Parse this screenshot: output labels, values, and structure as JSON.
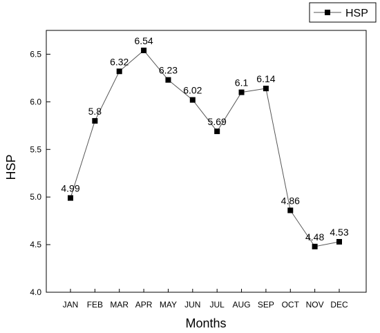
{
  "chart_data": {
    "type": "line",
    "title": "",
    "xlabel": "Months",
    "ylabel": "HSP",
    "categories": [
      "JAN",
      "FEB",
      "MAR",
      "APR",
      "MAY",
      "JUN",
      "JUL",
      "AUG",
      "SEP",
      "OCT",
      "NOV",
      "DEC"
    ],
    "series": [
      {
        "name": "HSP",
        "values": [
          4.99,
          5.8,
          6.32,
          6.54,
          6.23,
          6.02,
          5.69,
          6.1,
          6.14,
          4.86,
          4.48,
          4.53
        ],
        "labels": [
          "4.99",
          "5.8",
          "6.32",
          "6.54",
          "6.23",
          "6.02",
          "5.69",
          "6.1",
          "6.14",
          "4.86",
          "4.48",
          "4.53"
        ],
        "color": "#000000",
        "line_color": "#555555",
        "marker": "square"
      }
    ],
    "ylim": [
      4.0,
      6.75
    ],
    "yticks": [
      "4.0",
      "4.5",
      "5.0",
      "5.5",
      "6.0",
      "6.5"
    ],
    "grid": false,
    "legend_position": "top-right"
  }
}
